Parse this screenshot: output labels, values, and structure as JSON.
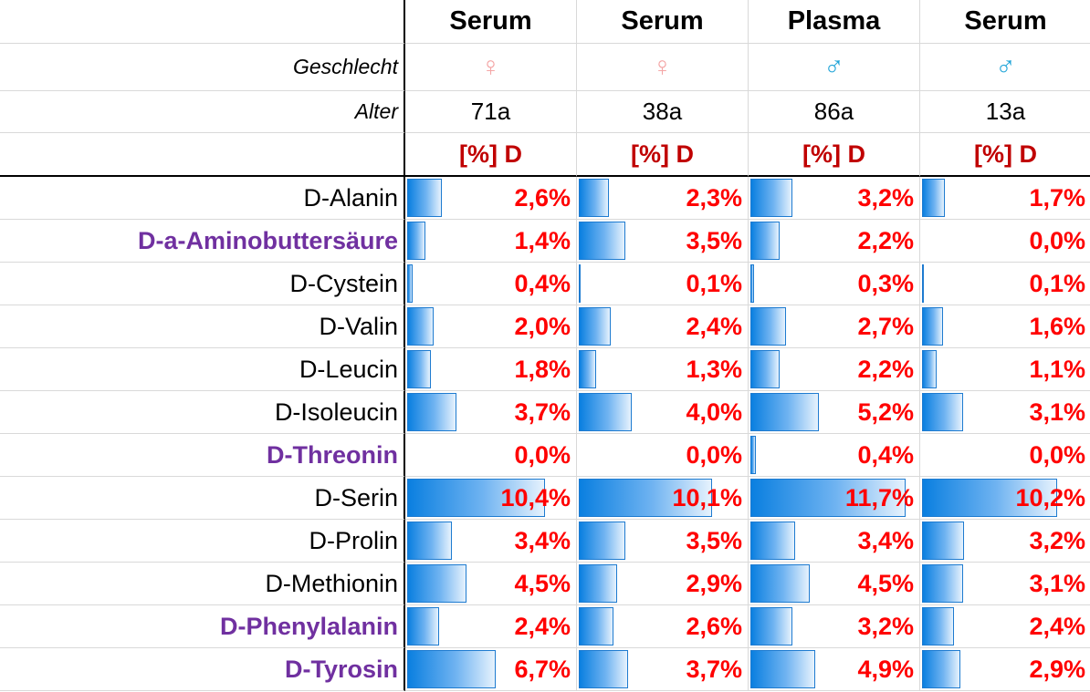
{
  "header": {
    "labels": {
      "gender": "Geschlecht",
      "age": "Alter"
    },
    "columns": [
      {
        "sample": "Serum",
        "gender_symbol": "♀",
        "gender_color": "#f4a6a6",
        "age": "71a",
        "unit": "[%] D"
      },
      {
        "sample": "Serum",
        "gender_symbol": "♀",
        "gender_color": "#f4a6a6",
        "age": "38a",
        "unit": "[%] D"
      },
      {
        "sample": "Plasma",
        "gender_symbol": "♂",
        "gender_color": "#1fa4d8",
        "age": "86a",
        "unit": "[%] D"
      },
      {
        "sample": "Serum",
        "gender_symbol": "♂",
        "gender_color": "#1fa4d8",
        "age": "13a",
        "unit": "[%] D"
      }
    ]
  },
  "colors": {
    "highlight_label": "#7030a0",
    "value_text": "#ff0000",
    "unit_text": "#c00000"
  },
  "rows": [
    {
      "label": "D-Alanin",
      "highlight": false,
      "values": [
        2.6,
        2.3,
        3.2,
        1.7
      ],
      "display": [
        "2,6%",
        "2,3%",
        "3,2%",
        "1,7%"
      ]
    },
    {
      "label": "D-a-Aminobuttersäure",
      "highlight": true,
      "values": [
        1.4,
        3.5,
        2.2,
        0.0
      ],
      "display": [
        "1,4%",
        "3,5%",
        "2,2%",
        "0,0%"
      ]
    },
    {
      "label": "D-Cystein",
      "highlight": false,
      "values": [
        0.4,
        0.1,
        0.3,
        0.1
      ],
      "display": [
        "0,4%",
        "0,1%",
        "0,3%",
        "0,1%"
      ]
    },
    {
      "label": "D-Valin",
      "highlight": false,
      "values": [
        2.0,
        2.4,
        2.7,
        1.6
      ],
      "display": [
        "2,0%",
        "2,4%",
        "2,7%",
        "1,6%"
      ]
    },
    {
      "label": "D-Leucin",
      "highlight": false,
      "values": [
        1.8,
        1.3,
        2.2,
        1.1
      ],
      "display": [
        "1,8%",
        "1,3%",
        "2,2%",
        "1,1%"
      ]
    },
    {
      "label": "D-Isoleucin",
      "highlight": false,
      "values": [
        3.7,
        4.0,
        5.2,
        3.1
      ],
      "display": [
        "3,7%",
        "4,0%",
        "5,2%",
        "3,1%"
      ]
    },
    {
      "label": "D-Threonin",
      "highlight": true,
      "values": [
        0.0,
        0.0,
        0.4,
        0.0
      ],
      "display": [
        "0,0%",
        "0,0%",
        "0,4%",
        "0,0%"
      ]
    },
    {
      "label": "D-Serin",
      "highlight": false,
      "values": [
        10.4,
        10.1,
        11.7,
        10.2
      ],
      "display": [
        "10,4%",
        "10,1%",
        "11,7%",
        "10,2%"
      ]
    },
    {
      "label": "D-Prolin",
      "highlight": false,
      "values": [
        3.4,
        3.5,
        3.4,
        3.2
      ],
      "display": [
        "3,4%",
        "3,5%",
        "3,4%",
        "3,2%"
      ]
    },
    {
      "label": "D-Methionin",
      "highlight": false,
      "values": [
        4.5,
        2.9,
        4.5,
        3.1
      ],
      "display": [
        "4,5%",
        "2,9%",
        "4,5%",
        "3,1%"
      ]
    },
    {
      "label": "D-Phenylalanin",
      "highlight": true,
      "values": [
        2.4,
        2.6,
        3.2,
        2.4
      ],
      "display": [
        "2,4%",
        "2,6%",
        "3,2%",
        "2,4%"
      ]
    },
    {
      "label": "D-Tyrosin",
      "highlight": true,
      "values": [
        6.7,
        3.7,
        4.9,
        2.9
      ],
      "display": [
        "6,7%",
        "3,7%",
        "4,9%",
        "2,9%"
      ]
    }
  ]
}
